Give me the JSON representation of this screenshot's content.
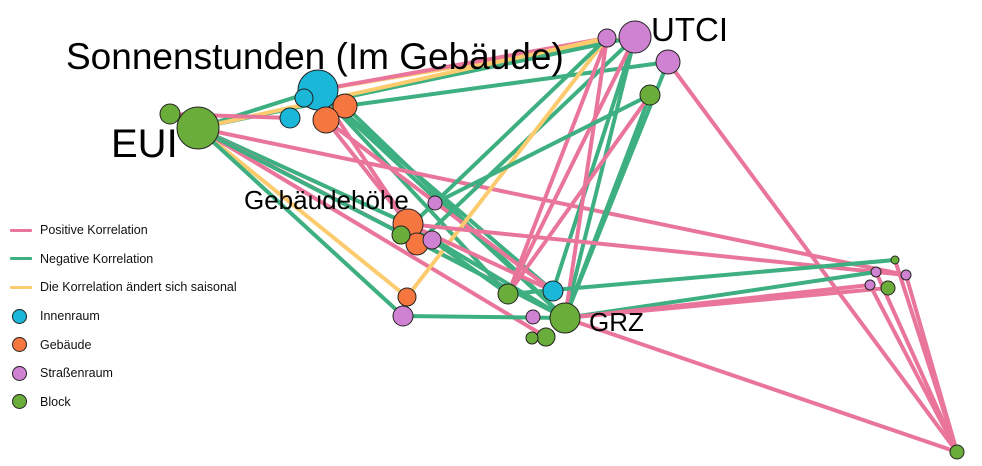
{
  "colors": {
    "positive": "#e9769a",
    "negative": "#3daf80",
    "seasonal": "#fccb6e",
    "innenraum": "#1ab7d8",
    "gebaeude": "#f5773f",
    "strassenraum": "#d082d2",
    "block": "#6aad3a"
  },
  "labels": {
    "sonnenstunden": "Sonnenstunden (Im Gebäude)",
    "eui": "EUI",
    "utci": "UTCI",
    "gebaeudehoehe": "Gebäudehöhe",
    "grz": "GRZ"
  },
  "legend": [
    {
      "kind": "line",
      "color_key": "positive",
      "label": "Positive Korrelation"
    },
    {
      "kind": "line",
      "color_key": "negative",
      "label": "Negative Korrelation"
    },
    {
      "kind": "line",
      "color_key": "seasonal",
      "label": "Die Korrelation ändert sich saisonal"
    },
    {
      "kind": "dot",
      "color_key": "innenraum",
      "label": "Innenraum"
    },
    {
      "kind": "dot",
      "color_key": "gebaeude",
      "label": "Gebäude"
    },
    {
      "kind": "dot",
      "color_key": "strassenraum",
      "label": "Straßenraum"
    },
    {
      "kind": "dot",
      "color_key": "block",
      "label": "Block"
    }
  ],
  "nodes": [
    {
      "id": "sonnenstunden",
      "category": "innenraum"
    },
    {
      "id": "eui",
      "category": "block"
    },
    {
      "id": "utci",
      "category": "strassenraum"
    },
    {
      "id": "gebaeudehoehe",
      "category": "gebaeude"
    },
    {
      "id": "grz",
      "category": "block"
    },
    {
      "id": "s1",
      "category": "innenraum"
    },
    {
      "id": "s2",
      "category": "innenraum"
    },
    {
      "id": "s3",
      "category": "gebaeude"
    },
    {
      "id": "s4",
      "category": "gebaeude"
    },
    {
      "id": "e1",
      "category": "block"
    },
    {
      "id": "u1",
      "category": "strassenraum"
    },
    {
      "id": "u2",
      "category": "strassenraum"
    },
    {
      "id": "u3",
      "category": "block"
    },
    {
      "id": "h1",
      "category": "strassenraum"
    },
    {
      "id": "h2",
      "category": "gebaeude"
    },
    {
      "id": "h3",
      "category": "strassenraum"
    },
    {
      "id": "h4",
      "category": "block"
    },
    {
      "id": "m1",
      "category": "gebaeude"
    },
    {
      "id": "m2",
      "category": "strassenraum"
    },
    {
      "id": "g1",
      "category": "innenraum"
    },
    {
      "id": "g2",
      "category": "block"
    },
    {
      "id": "g3",
      "category": "strassenraum"
    },
    {
      "id": "g4",
      "category": "block"
    },
    {
      "id": "g5",
      "category": "block"
    },
    {
      "id": "r1",
      "category": "block"
    },
    {
      "id": "r2",
      "category": "strassenraum"
    },
    {
      "id": "r3",
      "category": "strassenraum"
    },
    {
      "id": "r4",
      "category": "strassenraum"
    },
    {
      "id": "r5",
      "category": "block"
    },
    {
      "id": "r6",
      "category": "block"
    }
  ],
  "edges": [
    {
      "source": "sonnenstunden",
      "target": "grz",
      "type": "negative"
    },
    {
      "source": "sonnenstunden",
      "target": "gebaeudehoehe",
      "type": "positive"
    },
    {
      "source": "sonnenstunden",
      "target": "utci",
      "type": "seasonal"
    },
    {
      "source": "sonnenstunden",
      "target": "u1",
      "type": "positive"
    },
    {
      "source": "sonnenstunden",
      "target": "g1",
      "type": "negative"
    },
    {
      "source": "sonnenstunden",
      "target": "g2",
      "type": "negative"
    },
    {
      "source": "s3",
      "target": "grz",
      "type": "negative"
    },
    {
      "source": "s3",
      "target": "u2",
      "type": "negative"
    },
    {
      "source": "s4",
      "target": "gebaeudehoehe",
      "type": "positive"
    },
    {
      "source": "s4",
      "target": "g1",
      "type": "positive"
    },
    {
      "source": "eui",
      "target": "sonnenstunden",
      "type": "negative"
    },
    {
      "source": "eui",
      "target": "utci",
      "type": "negative"
    },
    {
      "source": "eui",
      "target": "u1",
      "type": "seasonal"
    },
    {
      "source": "eui",
      "target": "gebaeudehoehe",
      "type": "negative"
    },
    {
      "source": "eui",
      "target": "grz",
      "type": "positive"
    },
    {
      "source": "eui",
      "target": "m1",
      "type": "seasonal"
    },
    {
      "source": "eui",
      "target": "m2",
      "type": "negative"
    },
    {
      "source": "eui",
      "target": "r3",
      "type": "positive"
    },
    {
      "source": "eui",
      "target": "g4",
      "type": "positive"
    },
    {
      "source": "e1",
      "target": "grz",
      "type": "negative"
    },
    {
      "source": "e1",
      "target": "s2",
      "type": "positive"
    },
    {
      "source": "utci",
      "target": "grz",
      "type": "negative"
    },
    {
      "source": "utci",
      "target": "g1",
      "type": "negative"
    },
    {
      "source": "utci",
      "target": "g2",
      "type": "positive"
    },
    {
      "source": "utci",
      "target": "h2",
      "type": "negative"
    },
    {
      "source": "u1",
      "target": "grz",
      "type": "positive"
    },
    {
      "source": "u1",
      "target": "g2",
      "type": "positive"
    },
    {
      "source": "u1",
      "target": "m1",
      "type": "seasonal"
    },
    {
      "source": "u1",
      "target": "h4",
      "type": "negative"
    },
    {
      "source": "u2",
      "target": "r6",
      "type": "positive"
    },
    {
      "source": "u2",
      "target": "grz",
      "type": "negative"
    },
    {
      "source": "u3",
      "target": "grz",
      "type": "negative"
    },
    {
      "source": "u3",
      "target": "h1",
      "type": "negative"
    },
    {
      "source": "u3",
      "target": "g2",
      "type": "positive"
    },
    {
      "source": "gebaeudehoehe",
      "target": "grz",
      "type": "negative"
    },
    {
      "source": "gebaeudehoehe",
      "target": "r3",
      "type": "positive"
    },
    {
      "source": "gebaeudehoehe",
      "target": "g1",
      "type": "positive"
    },
    {
      "source": "h3",
      "target": "g2",
      "type": "negative"
    },
    {
      "source": "m2",
      "target": "grz",
      "type": "negative"
    },
    {
      "source": "grz",
      "target": "r2",
      "type": "negative"
    },
    {
      "source": "grz",
      "target": "r4",
      "type": "positive"
    },
    {
      "source": "grz",
      "target": "r5",
      "type": "positive"
    },
    {
      "source": "grz",
      "target": "r6",
      "type": "positive"
    },
    {
      "source": "g2",
      "target": "r1",
      "type": "negative"
    },
    {
      "source": "r1",
      "target": "r6",
      "type": "positive"
    },
    {
      "source": "r2",
      "target": "r6",
      "type": "positive"
    },
    {
      "source": "r3",
      "target": "r6",
      "type": "positive"
    },
    {
      "source": "r4",
      "target": "r6",
      "type": "positive"
    }
  ]
}
